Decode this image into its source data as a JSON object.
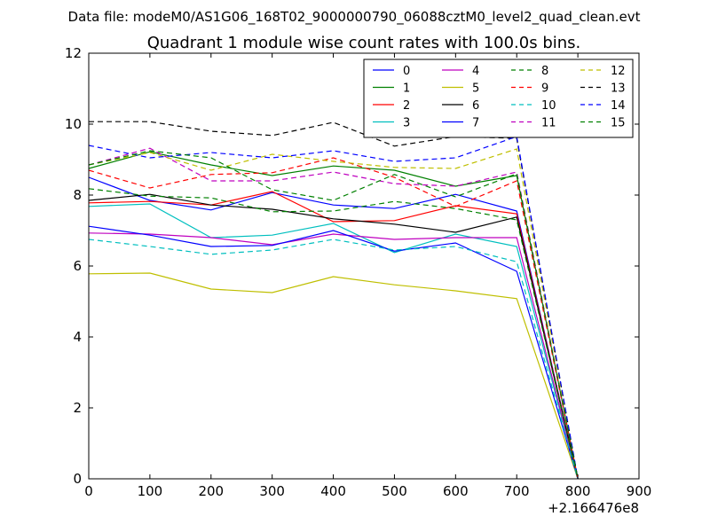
{
  "suptitle": "Data file: modeM0/AS1G06_168T02_9000000790_06088cztM0_level2_quad_clean.evt",
  "chart_data": {
    "type": "line",
    "title": "Quadrant 1 module wise count rates with 100.0s bins.",
    "xlabel": "",
    "ylabel": "",
    "x_offset_label": "+2.166476e8",
    "xlim": [
      0,
      900
    ],
    "ylim": [
      0,
      12
    ],
    "xticks": [
      0,
      100,
      200,
      300,
      400,
      500,
      600,
      700,
      800,
      900
    ],
    "yticks": [
      0,
      2,
      4,
      6,
      8,
      10,
      12
    ],
    "grid": false,
    "legend_placement": "top-right",
    "legend_columns": 4,
    "x": [
      0,
      100,
      200,
      300,
      400,
      500,
      600,
      700,
      800
    ],
    "series": [
      {
        "name": "0",
        "color": "#0000ff",
        "dash": "solid",
        "values": [
          8.5,
          7.85,
          7.58,
          8.07,
          7.72,
          7.62,
          8.02,
          7.55,
          0
        ]
      },
      {
        "name": "1",
        "color": "#008000",
        "dash": "solid",
        "values": [
          8.75,
          9.22,
          8.85,
          8.55,
          8.82,
          8.7,
          8.25,
          8.55,
          0
        ]
      },
      {
        "name": "2",
        "color": "#ff0000",
        "dash": "solid",
        "values": [
          7.78,
          7.82,
          7.72,
          8.1,
          7.25,
          7.28,
          7.7,
          7.47,
          0
        ]
      },
      {
        "name": "3",
        "color": "#00bfbf",
        "dash": "solid",
        "values": [
          7.68,
          7.75,
          6.8,
          6.87,
          7.2,
          6.38,
          6.9,
          6.55,
          0
        ]
      },
      {
        "name": "4",
        "color": "#bf00bf",
        "dash": "solid",
        "values": [
          6.93,
          6.9,
          6.8,
          6.6,
          6.9,
          6.75,
          6.8,
          6.8,
          0
        ]
      },
      {
        "name": "5",
        "color": "#bfbf00",
        "dash": "solid",
        "values": [
          5.78,
          5.8,
          5.35,
          5.25,
          5.7,
          5.47,
          5.3,
          5.08,
          0
        ]
      },
      {
        "name": "6",
        "color": "#000000",
        "dash": "solid",
        "values": [
          7.85,
          8.02,
          7.72,
          7.6,
          7.33,
          7.18,
          6.95,
          7.38,
          0
        ]
      },
      {
        "name": "7",
        "color": "#0000ff",
        "dash": "solid",
        "values": [
          7.12,
          6.87,
          6.55,
          6.58,
          7.0,
          6.42,
          6.65,
          5.85,
          0
        ]
      },
      {
        "name": "8",
        "color": "#008000",
        "dash": "dashed",
        "values": [
          8.18,
          7.97,
          7.92,
          7.53,
          7.55,
          7.82,
          7.62,
          7.3,
          0
        ]
      },
      {
        "name": "9",
        "color": "#ff0000",
        "dash": "dashed",
        "values": [
          8.7,
          8.2,
          8.58,
          8.63,
          9.05,
          8.5,
          7.68,
          8.4,
          0
        ]
      },
      {
        "name": "10",
        "color": "#00bfbf",
        "dash": "dashed",
        "values": [
          6.75,
          6.55,
          6.33,
          6.45,
          6.75,
          6.45,
          6.55,
          6.12,
          0
        ]
      },
      {
        "name": "11",
        "color": "#bf00bf",
        "dash": "dashed",
        "values": [
          8.85,
          9.32,
          8.4,
          8.4,
          8.65,
          8.32,
          8.25,
          8.65,
          0
        ]
      },
      {
        "name": "12",
        "color": "#bfbf00",
        "dash": "dashed",
        "values": [
          8.85,
          9.2,
          8.7,
          9.15,
          8.95,
          8.78,
          8.75,
          9.3,
          0
        ]
      },
      {
        "name": "13",
        "color": "#000000",
        "dash": "dashed",
        "values": [
          10.07,
          10.07,
          9.8,
          9.68,
          10.05,
          9.38,
          9.65,
          9.6,
          0
        ]
      },
      {
        "name": "14",
        "color": "#0000ff",
        "dash": "dashed",
        "values": [
          9.4,
          9.05,
          9.2,
          9.05,
          9.25,
          8.95,
          9.05,
          9.65,
          0
        ]
      },
      {
        "name": "15",
        "color": "#008000",
        "dash": "dashed",
        "values": [
          8.85,
          9.25,
          9.05,
          8.15,
          7.85,
          8.58,
          7.95,
          8.6,
          0
        ]
      }
    ]
  }
}
